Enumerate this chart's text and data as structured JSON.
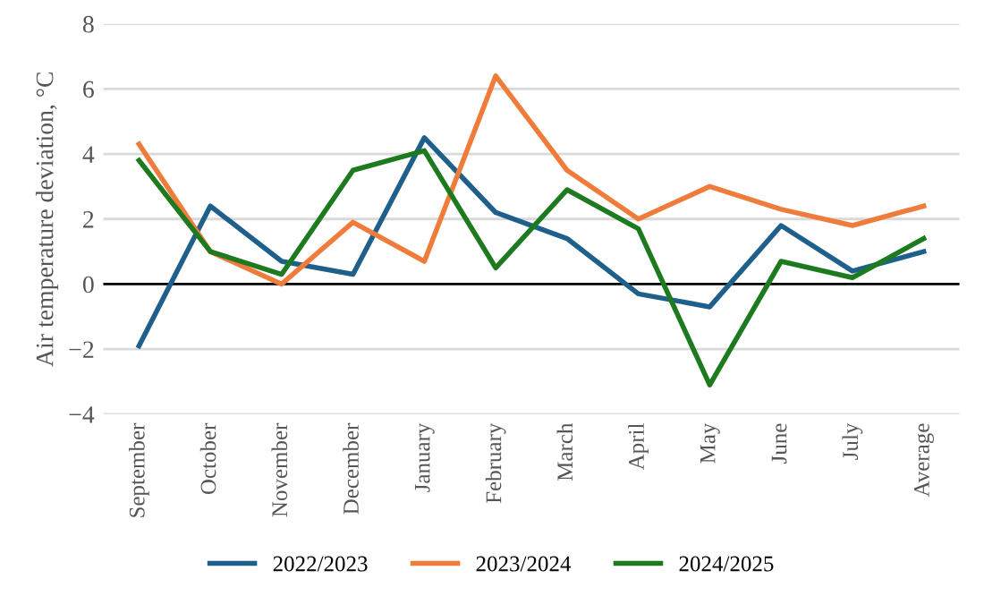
{
  "chart_data": {
    "type": "line",
    "ylabel": "Air temperature deviation, °C",
    "categories": [
      "September",
      "October",
      "November",
      "December",
      "January",
      "February",
      "March",
      "April",
      "May",
      "June",
      "July",
      "Average"
    ],
    "series": [
      {
        "name": "2022/2023",
        "color": "#1f5f8b",
        "values": [
          -1.9,
          2.4,
          0.7,
          0.3,
          4.5,
          2.2,
          1.4,
          -0.3,
          -0.7,
          1.8,
          0.4,
          1.0
        ]
      },
      {
        "name": "2023/2024",
        "color": "#f07c3c",
        "values": [
          4.3,
          1.0,
          0.0,
          1.9,
          0.7,
          6.4,
          3.5,
          2.0,
          3.0,
          2.3,
          1.8,
          2.4
        ]
      },
      {
        "name": "2024/2025",
        "color": "#1e7a1e",
        "values": [
          3.8,
          1.0,
          0.3,
          3.5,
          4.1,
          0.5,
          2.9,
          1.7,
          -3.1,
          0.7,
          0.2,
          1.4
        ]
      }
    ],
    "ylim": [
      -4,
      8
    ],
    "yticks": [
      {
        "value": -4,
        "label": "−4"
      },
      {
        "value": -2,
        "label": "−2"
      },
      0,
      2,
      4,
      6,
      8
    ],
    "ref_lines": [
      {
        "axis": "y",
        "value": 0,
        "color": "#000000"
      }
    ],
    "grid": "y",
    "legend": "bottom",
    "marker": "none",
    "line_style": "solid"
  }
}
